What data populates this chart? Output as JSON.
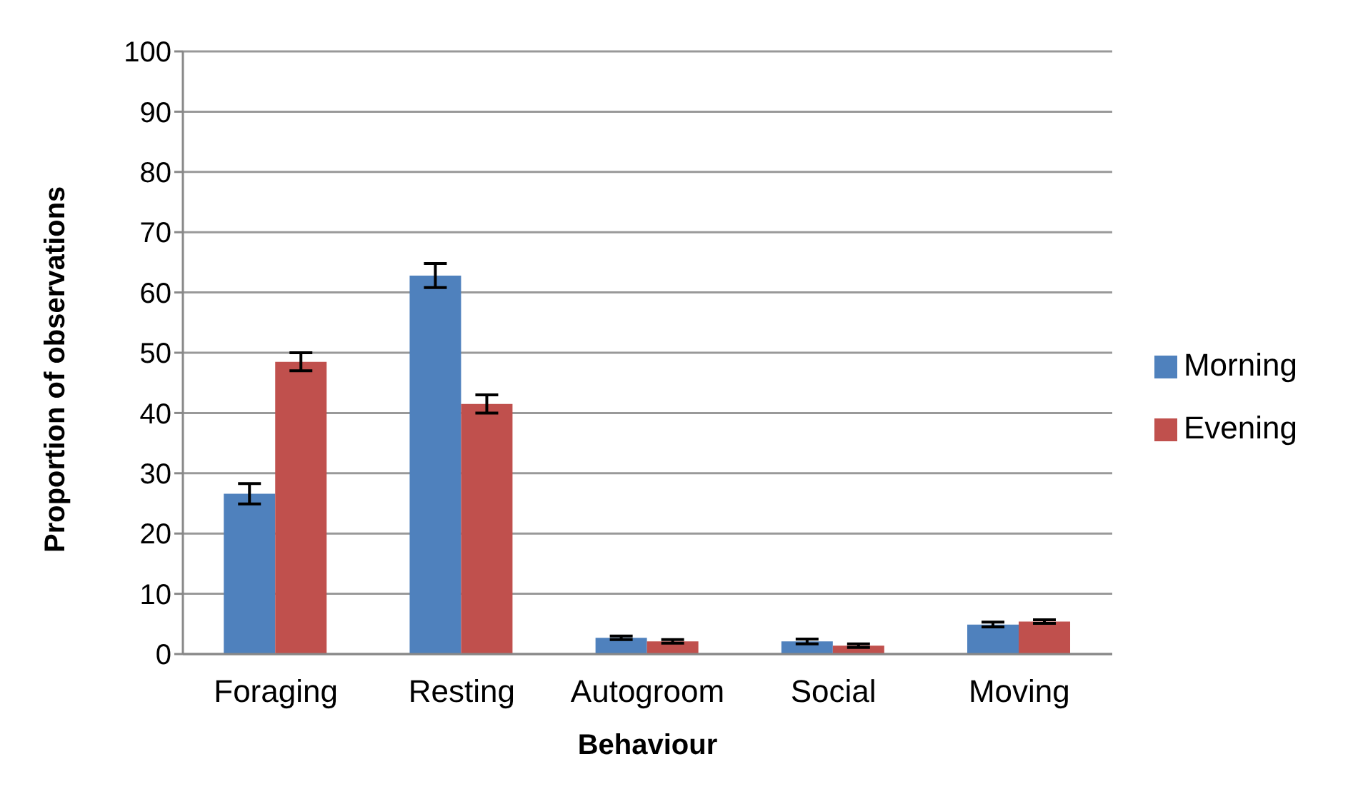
{
  "chart_data": {
    "type": "bar",
    "xlabel": "Behaviour",
    "ylabel": "Proportion of observations",
    "categories": [
      "Foraging",
      "Resting",
      "Autogroom",
      "Social",
      "Moving"
    ],
    "series": [
      {
        "name": "Morning",
        "color": "#4f81bd",
        "values": [
          26.6,
          62.8,
          2.7,
          2.1,
          4.9
        ],
        "errors": [
          1.7,
          2,
          0.3,
          0.4,
          0.4
        ]
      },
      {
        "name": "Evening",
        "color": "#c0504d",
        "values": [
          48.5,
          41.5,
          2.1,
          1.4,
          5.4
        ],
        "errors": [
          1.5,
          1.5,
          0.3,
          0.3,
          0.3
        ]
      }
    ],
    "ylim": [
      0,
      100
    ],
    "yticks": [
      0,
      10,
      20,
      30,
      40,
      50,
      60,
      70,
      80,
      90,
      100
    ],
    "grid": "y",
    "legend": "right"
  }
}
